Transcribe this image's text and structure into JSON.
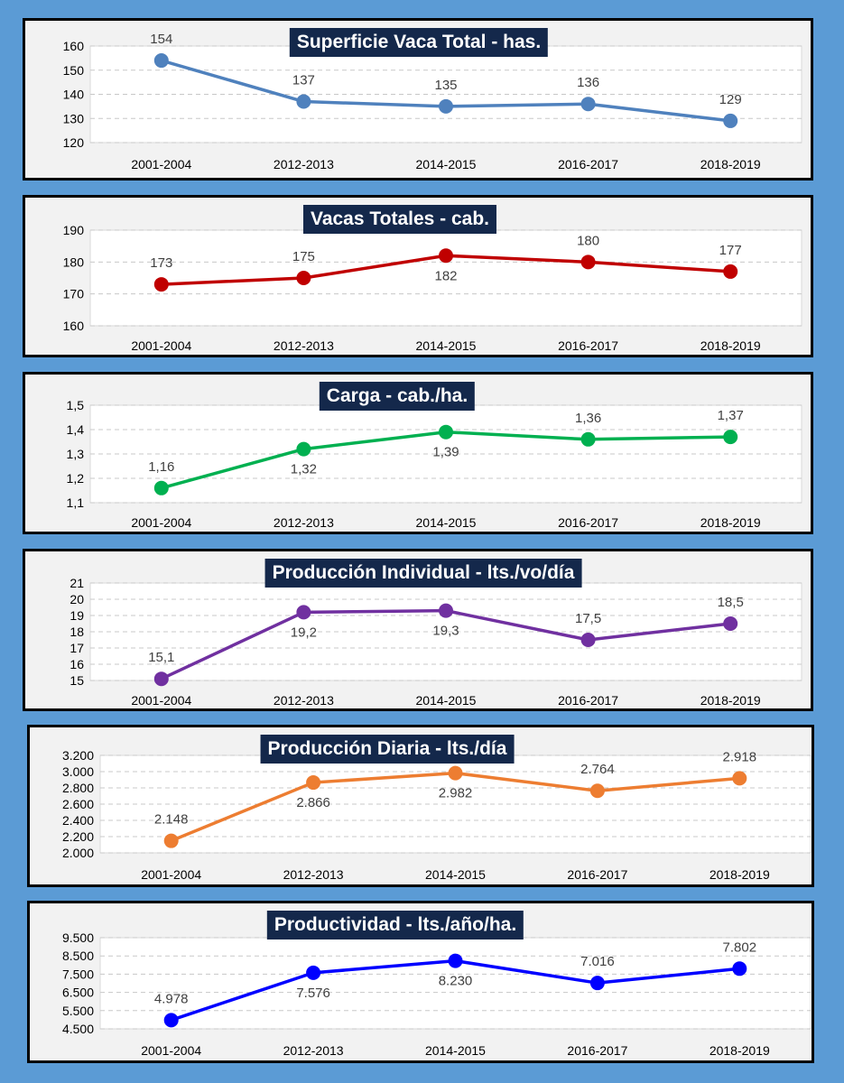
{
  "chart_data": [
    {
      "type": "line",
      "title": "Superficie Vaca Total - has.",
      "categories": [
        "2001-2004",
        "2012-2013",
        "2014-2015",
        "2016-2017",
        "2018-2019"
      ],
      "values": [
        154,
        137,
        135,
        136,
        129
      ],
      "value_labels": [
        "154",
        "137",
        "135",
        "136",
        "129"
      ],
      "yticks": [
        120,
        130,
        140,
        150,
        160
      ],
      "ytick_labels": [
        "120",
        "130",
        "140",
        "150",
        "160"
      ],
      "ylim": [
        120,
        160
      ],
      "label_positions": [
        "above",
        "above",
        "above",
        "above",
        "above"
      ],
      "color": "#4f81bd",
      "grid": true
    },
    {
      "type": "line",
      "title": "Vacas Totales - cab.",
      "categories": [
        "2001-2004",
        "2012-2013",
        "2014-2015",
        "2016-2017",
        "2018-2019"
      ],
      "values": [
        173,
        175,
        182,
        180,
        177
      ],
      "value_labels": [
        "173",
        "175",
        "182",
        "180",
        "177"
      ],
      "yticks": [
        160,
        170,
        180,
        190
      ],
      "ytick_labels": [
        "160",
        "170",
        "180",
        "190"
      ],
      "ylim": [
        160,
        190
      ],
      "label_positions": [
        "above",
        "above",
        "below",
        "above",
        "above"
      ],
      "color": "#c00000",
      "grid": true
    },
    {
      "type": "line",
      "title": "Carga - cab./ha.",
      "categories": [
        "2001-2004",
        "2012-2013",
        "2014-2015",
        "2016-2017",
        "2018-2019"
      ],
      "values": [
        1.16,
        1.32,
        1.39,
        1.36,
        1.37
      ],
      "value_labels": [
        "1,16",
        "1,32",
        "1,39",
        "1,36",
        "1,37"
      ],
      "yticks": [
        1.1,
        1.2,
        1.3,
        1.4,
        1.5
      ],
      "ytick_labels": [
        "1,1",
        "1,2",
        "1,3",
        "1,4",
        "1,5"
      ],
      "ylim": [
        1.1,
        1.5
      ],
      "label_positions": [
        "above",
        "below",
        "below",
        "above",
        "above"
      ],
      "color": "#00b050",
      "grid": true
    },
    {
      "type": "line",
      "title": "Producción Individual - lts./vo/día",
      "categories": [
        "2001-2004",
        "2012-2013",
        "2014-2015",
        "2016-2017",
        "2018-2019"
      ],
      "values": [
        15.1,
        19.2,
        19.3,
        17.5,
        18.5
      ],
      "value_labels": [
        "15,1",
        "19,2",
        "19,3",
        "17,5",
        "18,5"
      ],
      "yticks": [
        15,
        16,
        17,
        18,
        19,
        20,
        21
      ],
      "ytick_labels": [
        "15",
        "16",
        "17",
        "18",
        "19",
        "20",
        "21"
      ],
      "ylim": [
        15,
        21
      ],
      "label_positions": [
        "above",
        "below",
        "below",
        "above",
        "above"
      ],
      "color": "#7030a0",
      "grid": true
    },
    {
      "type": "line",
      "title": "Producción Diaria - lts./día",
      "categories": [
        "2001-2004",
        "2012-2013",
        "2014-2015",
        "2016-2017",
        "2018-2019"
      ],
      "values": [
        2148,
        2866,
        2982,
        2764,
        2918
      ],
      "value_labels": [
        "2.148",
        "2.866",
        "2.982",
        "2.764",
        "2.918"
      ],
      "yticks": [
        2000,
        2200,
        2400,
        2600,
        2800,
        3000,
        3200
      ],
      "ytick_labels": [
        "2.000",
        "2.200",
        "2.400",
        "2.600",
        "2.800",
        "3.000",
        "3.200"
      ],
      "ylim": [
        2000,
        3200
      ],
      "label_positions": [
        "above",
        "below",
        "below",
        "above",
        "above"
      ],
      "color": "#ed7d31",
      "grid": true
    },
    {
      "type": "line",
      "title": "Productividad - lts./año/ha.",
      "categories": [
        "2001-2004",
        "2012-2013",
        "2014-2015",
        "2016-2017",
        "2018-2019"
      ],
      "values": [
        4978,
        7576,
        8230,
        7016,
        7802
      ],
      "value_labels": [
        "4.978",
        "7.576",
        "8.230",
        "7.016",
        "7.802"
      ],
      "yticks": [
        4500,
        5500,
        6500,
        7500,
        8500,
        9500
      ],
      "ytick_labels": [
        "4.500",
        "5.500",
        "6.500",
        "7.500",
        "8.500",
        "9.500"
      ],
      "ylim": [
        4500,
        9500
      ],
      "label_positions": [
        "above",
        "below",
        "below",
        "above",
        "above"
      ],
      "color": "#0000ff",
      "grid": true
    }
  ]
}
